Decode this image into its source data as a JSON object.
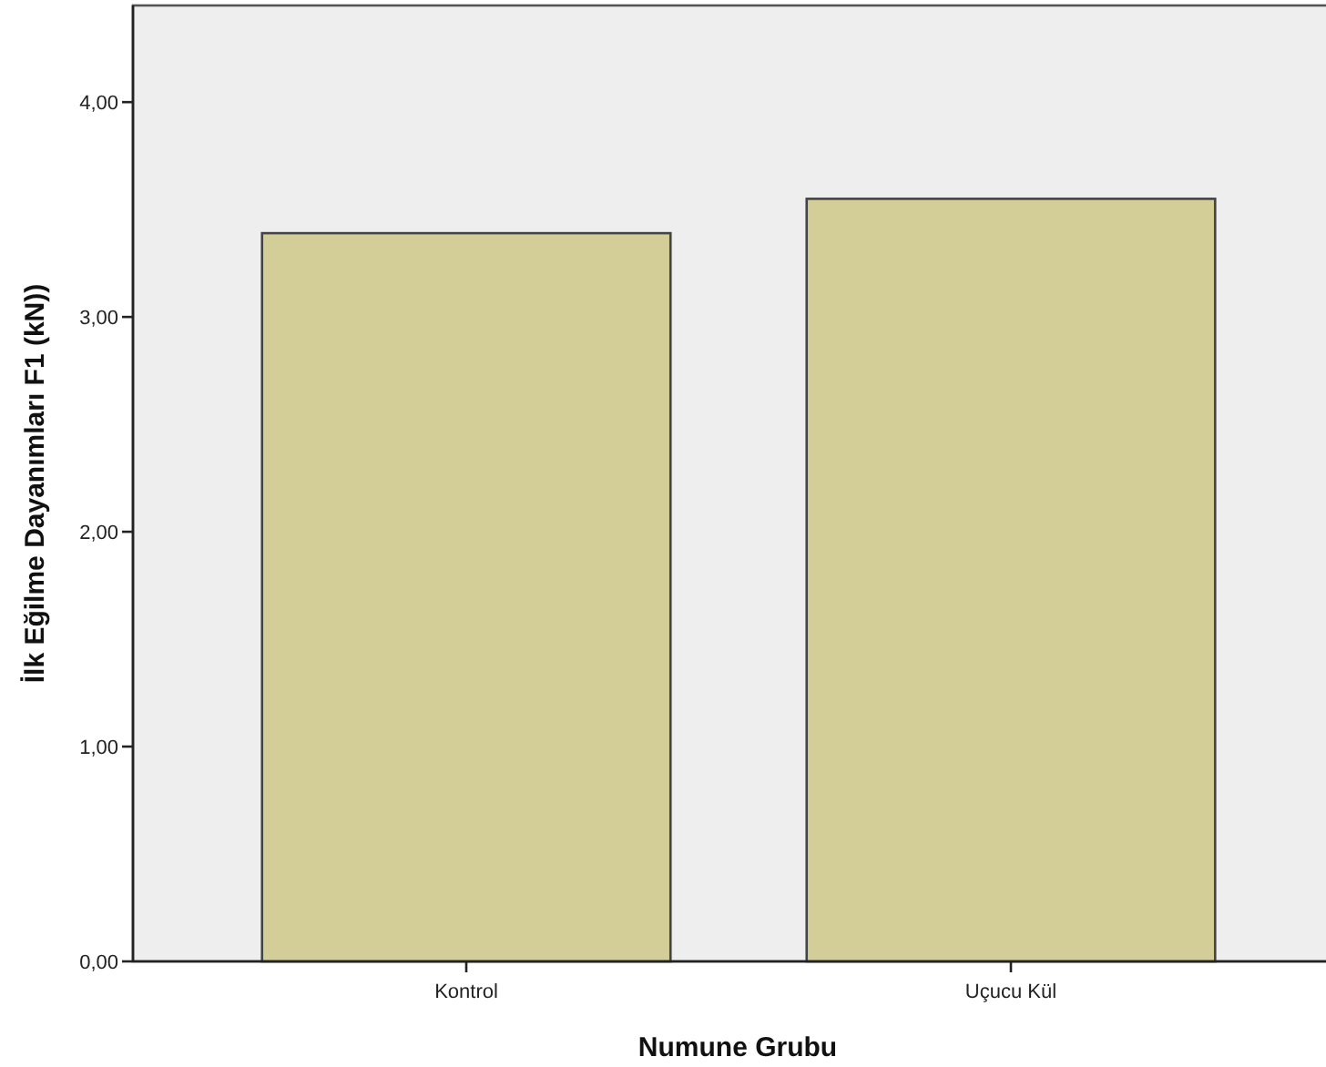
{
  "chart_data": {
    "type": "bar",
    "xlabel": "Numune Grubu",
    "ylabel": "İlk Eğilme Dayanımları F1 (kN))",
    "categories": [
      "Kontrol",
      "Uçucu Kül"
    ],
    "values": [
      3.39,
      3.55
    ],
    "color": "#d3ce97",
    "ylim": [
      0,
      4.45
    ],
    "yticks": [
      {
        "value": 0,
        "label": "0,00"
      },
      {
        "value": 1,
        "label": "1,00"
      },
      {
        "value": 2,
        "label": "2,00"
      },
      {
        "value": 3,
        "label": "3,00"
      },
      {
        "value": 4,
        "label": "4,00"
      }
    ],
    "grid": false
  }
}
